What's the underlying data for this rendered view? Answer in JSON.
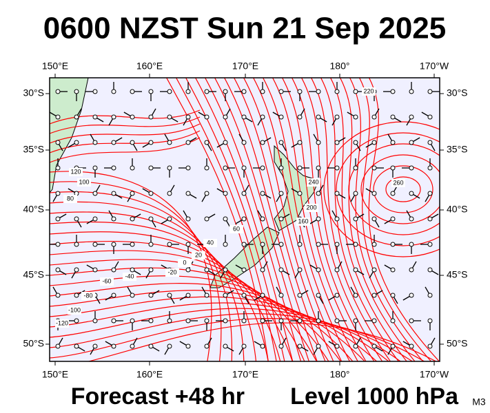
{
  "title": "0600 NZST Sun 21 Sep 2025",
  "footer": {
    "forecast": "Forecast +48 hr",
    "level": "Level 1000 hPa",
    "model": "M3"
  },
  "axes": {
    "lon_labels": [
      "150°E",
      "160°E",
      "170°E",
      "180°",
      "170°W"
    ],
    "lat_labels": [
      "30°S",
      "35°S",
      "40°S",
      "45°S",
      "50°S"
    ]
  },
  "contour_labels": [
    "120",
    "100",
    "80",
    "60",
    "40",
    "20",
    "0",
    "-20",
    "-40",
    "-60",
    "-80",
    "-100",
    "-120",
    "220",
    "240",
    "260",
    "200",
    "160"
  ]
}
